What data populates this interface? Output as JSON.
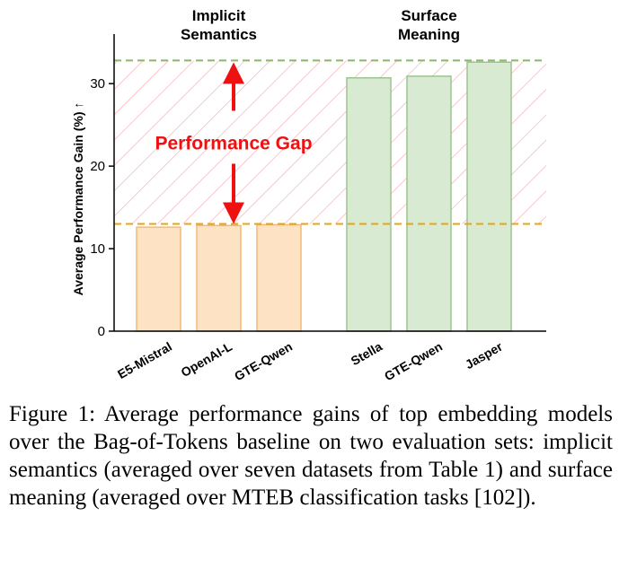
{
  "chart_data": {
    "type": "bar",
    "title": "",
    "ylabel": "Average Performance Gain (%) ↑",
    "xlabel": "",
    "ylim": [
      0,
      36
    ],
    "yticks": [
      0,
      10,
      20,
      30
    ],
    "grid": false,
    "groups": [
      {
        "label": "Implicit\nSemantics",
        "categories": [
          "E5-Mistral",
          "OpenAI-L",
          "GTE-Qwen"
        ],
        "values": [
          12.6,
          12.8,
          12.9
        ],
        "color": "#fde3c4",
        "edge": "#f0b978"
      },
      {
        "label": "Surface\nMeaning",
        "categories": [
          "Stella",
          "GTE-Qwen",
          "Jasper"
        ],
        "values": [
          30.7,
          30.9,
          32.6
        ],
        "color": "#d9ead2",
        "edge": "#9cc490"
      }
    ],
    "reference_lines": [
      {
        "value": 32.8,
        "color": "#88b868",
        "style": "dashed"
      },
      {
        "value": 13.0,
        "color": "#e8a415",
        "style": "dashed"
      }
    ],
    "annotation": {
      "text": "Performance Gap",
      "color": "#ee1111",
      "from": 13.0,
      "to": 32.8
    }
  },
  "caption": "Figure 1: Average performance gains of top embedding models over the Bag-of-Tokens baseline on two evaluation sets: implicit semantics (averaged over seven datasets from Table 1) and surface meaning (averaged over MTEB classification tasks [102])."
}
